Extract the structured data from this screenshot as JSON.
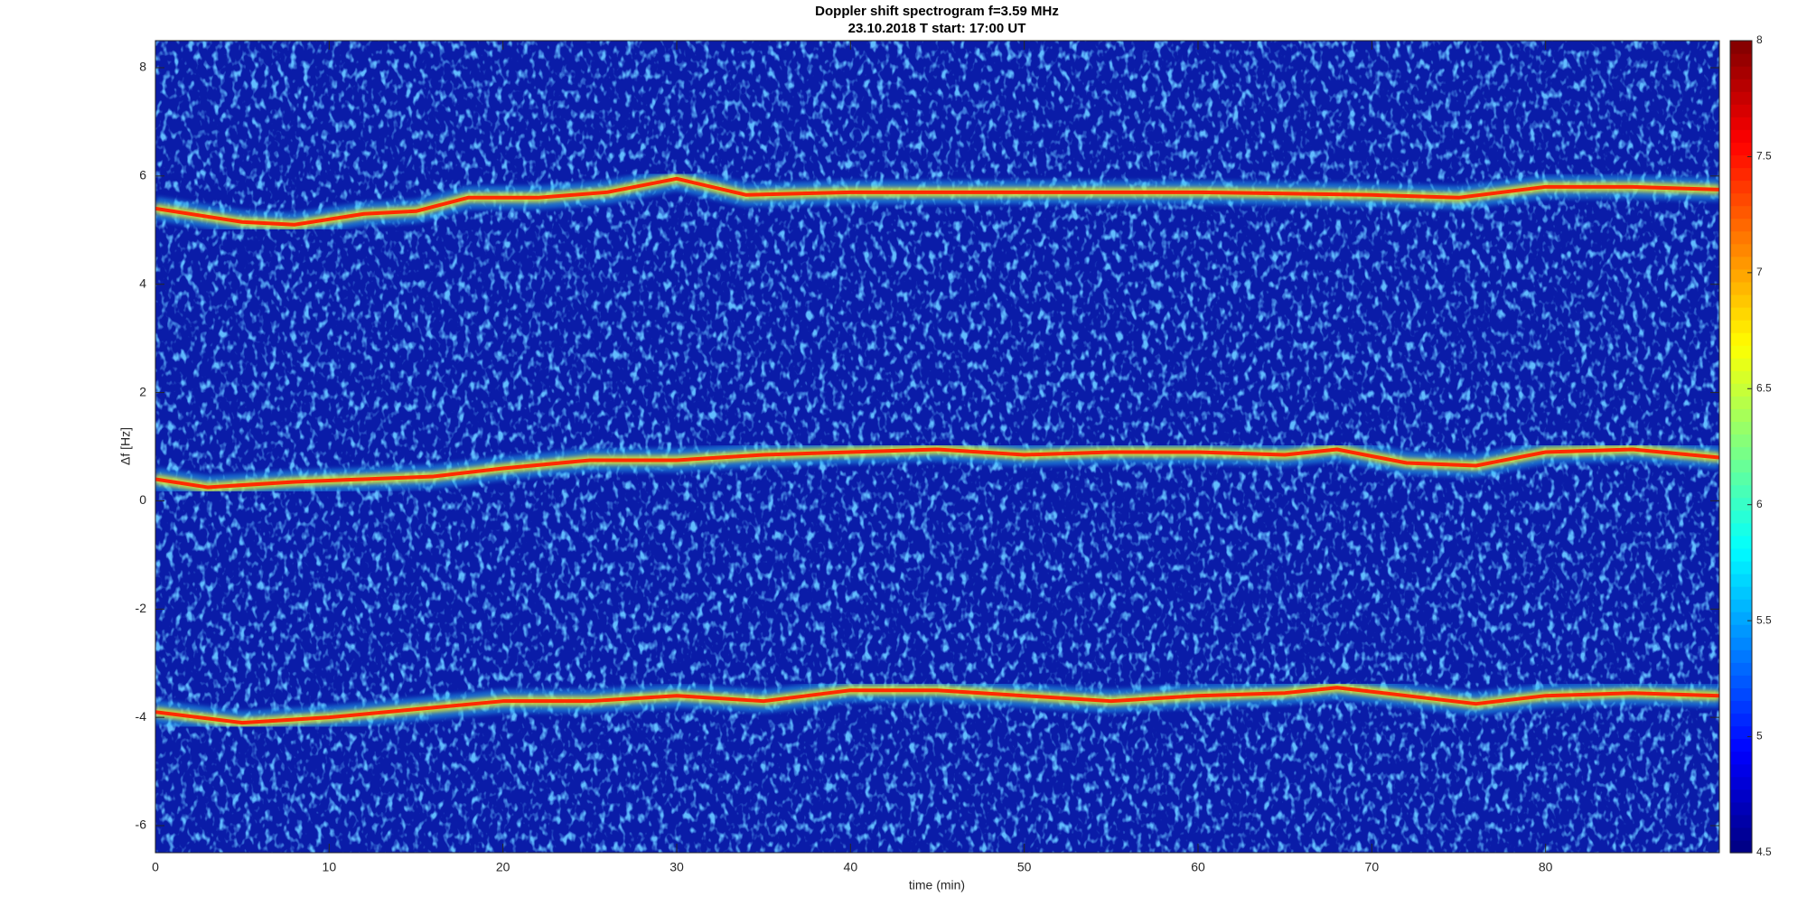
{
  "chart_data": {
    "type": "spectrogram",
    "title": "Doppler shift spectrogram f=3.59 MHz",
    "subtitle": "23.10.2018   T start: 17:00 UT",
    "x_label": "time (min)",
    "y_label": "Δf [Hz]",
    "xlim": [
      0,
      90
    ],
    "xticks": [
      0,
      10,
      20,
      30,
      40,
      50,
      60,
      70,
      80
    ],
    "ylim": [
      -6.5,
      8.5
    ],
    "yticks": [
      -6,
      -4,
      -2,
      0,
      2,
      4,
      6,
      8
    ],
    "clim": [
      4.5,
      8
    ],
    "cticks": [
      4.5,
      5,
      5.5,
      6,
      6.5,
      7,
      7.5,
      8
    ],
    "colormap": "jet",
    "series": [
      {
        "color": "#ff2a00",
        "x": [
          0,
          5,
          8,
          12,
          15,
          18,
          22,
          26,
          30,
          34,
          40,
          50,
          60,
          70,
          75,
          80,
          85,
          90
        ],
        "values": [
          5.4,
          5.15,
          5.1,
          5.3,
          5.35,
          5.6,
          5.6,
          5.7,
          5.95,
          5.65,
          5.7,
          5.7,
          5.7,
          5.65,
          5.6,
          5.8,
          5.8,
          5.75
        ]
      },
      {
        "color": "#ff2a00",
        "x": [
          0,
          3,
          8,
          12,
          16,
          20,
          25,
          30,
          35,
          40,
          45,
          50,
          55,
          60,
          65,
          68,
          72,
          76,
          80,
          85,
          90
        ],
        "values": [
          0.4,
          0.25,
          0.35,
          0.4,
          0.45,
          0.6,
          0.75,
          0.75,
          0.85,
          0.9,
          0.95,
          0.85,
          0.9,
          0.9,
          0.85,
          0.95,
          0.7,
          0.65,
          0.9,
          0.95,
          0.8
        ]
      },
      {
        "color": "#ff2a00",
        "x": [
          0,
          5,
          10,
          15,
          20,
          25,
          30,
          35,
          40,
          45,
          50,
          55,
          60,
          65,
          68,
          72,
          76,
          80,
          85,
          90
        ],
        "values": [
          -3.9,
          -4.1,
          -4.0,
          -3.85,
          -3.7,
          -3.7,
          -3.6,
          -3.7,
          -3.5,
          -3.5,
          -3.6,
          -3.7,
          -3.6,
          -3.55,
          -3.45,
          -3.6,
          -3.75,
          -3.6,
          -3.55,
          -3.6
        ]
      }
    ]
  }
}
